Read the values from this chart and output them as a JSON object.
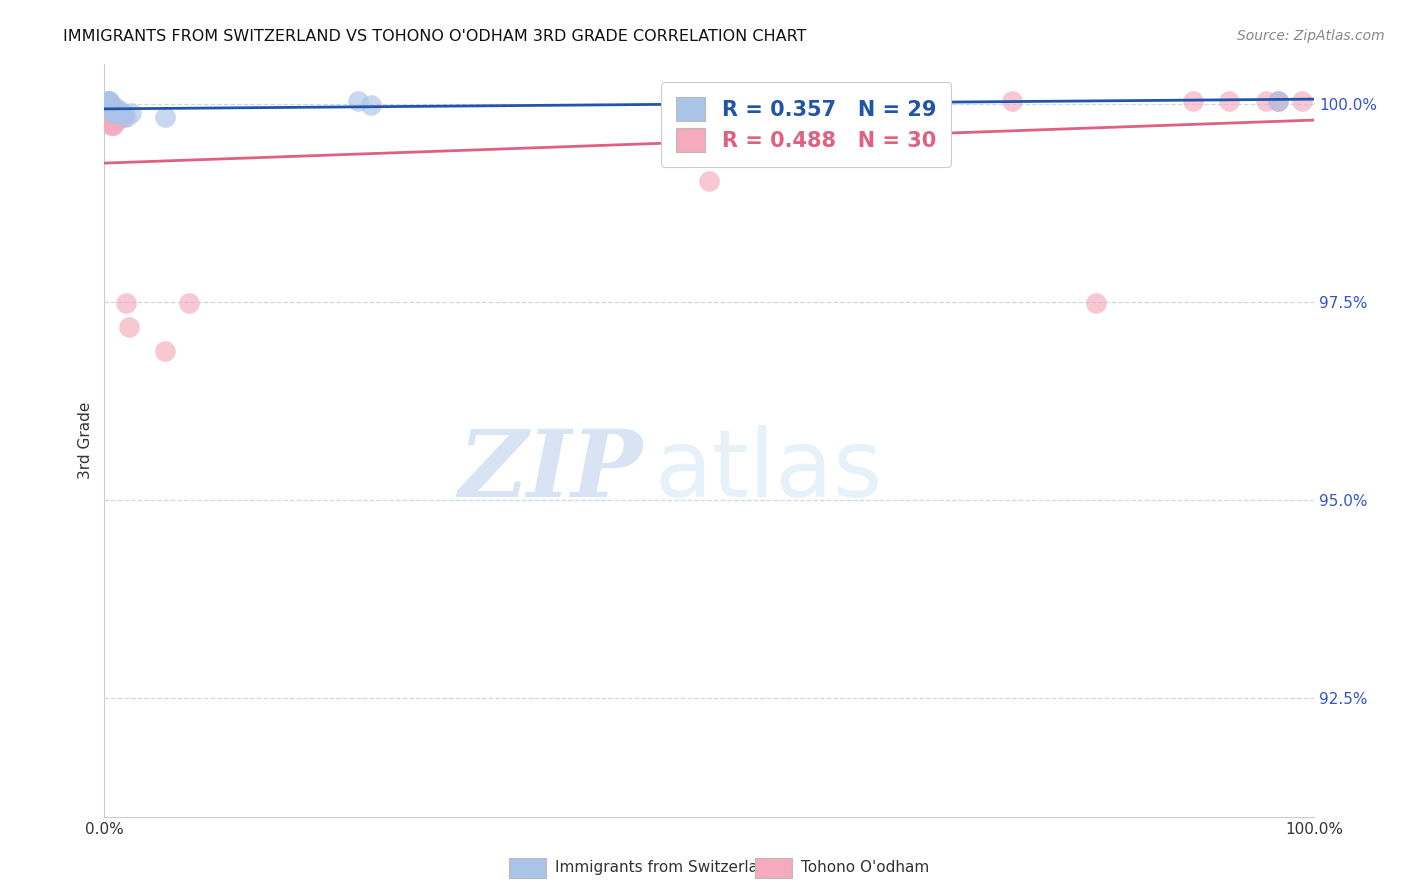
{
  "title": "IMMIGRANTS FROM SWITZERLAND VS TOHONO O'ODHAM 3RD GRADE CORRELATION CHART",
  "source": "Source: ZipAtlas.com",
  "ylabel": "3rd Grade",
  "xlim": [
    0,
    1.0
  ],
  "ylim": [
    0.91,
    1.005
  ],
  "yticks": [
    0.925,
    0.95,
    0.975,
    1.0
  ],
  "yticklabels": [
    "92.5%",
    "95.0%",
    "97.5%",
    "100.0%"
  ],
  "blue_R": 0.357,
  "blue_N": 29,
  "pink_R": 0.488,
  "pink_N": 30,
  "blue_color": "#aac4e8",
  "pink_color": "#f5aabe",
  "blue_line_color": "#2255aa",
  "pink_line_color": "#e06080",
  "blue_scatter_x": [
    0.003,
    0.003,
    0.004,
    0.004,
    0.005,
    0.005,
    0.005,
    0.005,
    0.006,
    0.006,
    0.006,
    0.007,
    0.007,
    0.008,
    0.008,
    0.009,
    0.01,
    0.01,
    0.011,
    0.012,
    0.013,
    0.015,
    0.018,
    0.022,
    0.05,
    0.21,
    0.22,
    0.56,
    0.97
  ],
  "blue_scatter_y": [
    1.0003,
    1.0003,
    1.0003,
    1.0003,
    0.9998,
    0.9998,
    0.9998,
    0.9998,
    0.9998,
    0.9993,
    0.9993,
    0.9988,
    0.9993,
    0.9988,
    0.9993,
    0.9993,
    0.9988,
    0.9988,
    0.9993,
    0.9988,
    0.9988,
    0.9988,
    0.9983,
    0.9988,
    0.9983,
    1.0003,
    0.9998,
    1.0003,
    1.0003
  ],
  "pink_scatter_x": [
    0.003,
    0.004,
    0.004,
    0.005,
    0.005,
    0.006,
    0.006,
    0.007,
    0.007,
    0.008,
    0.008,
    0.01,
    0.012,
    0.015,
    0.015,
    0.018,
    0.02,
    0.05,
    0.07,
    0.5,
    0.57,
    0.65,
    0.75,
    0.82,
    0.9,
    0.93,
    0.96,
    0.97,
    0.97,
    0.99
  ],
  "pink_scatter_y": [
    0.9978,
    0.9978,
    0.9978,
    0.9983,
    0.9973,
    0.9978,
    0.9978,
    0.9973,
    0.9973,
    0.9978,
    0.9978,
    0.9978,
    0.9983,
    0.9983,
    0.9983,
    0.9748,
    0.9718,
    0.9688,
    0.9748,
    0.9903,
    1.0003,
    1.0003,
    1.0003,
    0.9748,
    1.0003,
    1.0003,
    1.0003,
    1.0003,
    1.0003,
    1.0003
  ],
  "legend_label_blue": "Immigrants from Switzerland",
  "legend_label_pink": "Tohono O'odham",
  "watermark_zip": "ZIP",
  "watermark_atlas": "atlas",
  "background_color": "#ffffff",
  "grid_color": "#c8d8ee",
  "ytick_color": "#3355cc",
  "xtick_color": "#333333",
  "title_color": "#111111",
  "title_fontsize": 11.5,
  "source_fontsize": 10
}
